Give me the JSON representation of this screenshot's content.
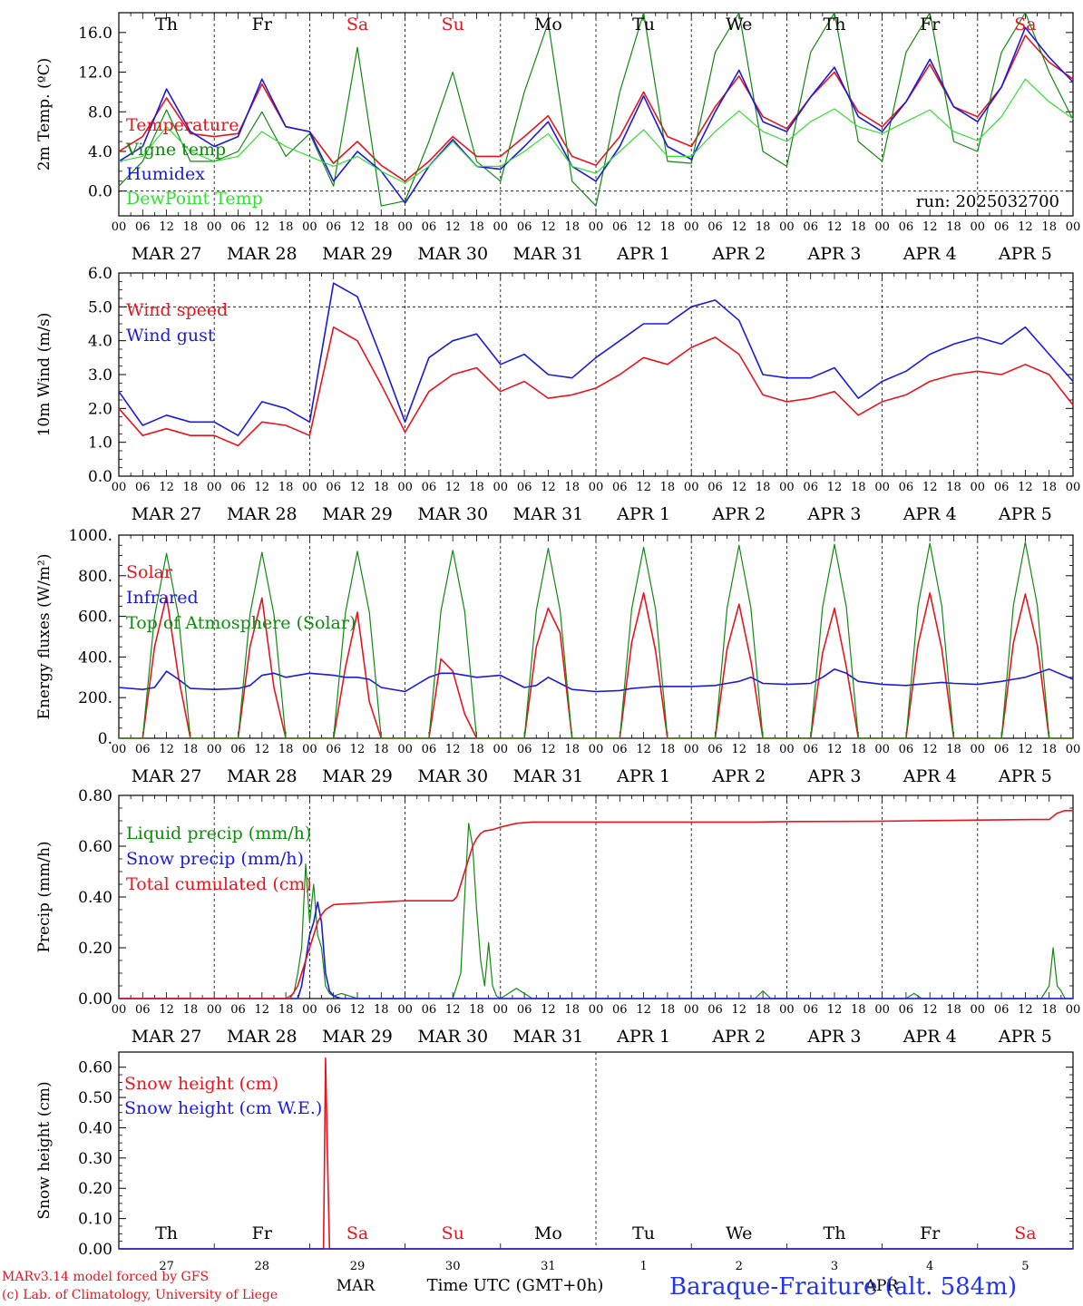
{
  "run_label": "run: 2025032700",
  "footer": {
    "model": "MARv3.14 model forced by GFS",
    "lab": "(c) Lab. of Climatology, University of Liege",
    "station": "Baraque-Fraiture (alt. 584m)",
    "xlabel": "Time UTC (GMT+0h)",
    "month_a": "MAR",
    "month_b": "APR"
  },
  "weekdays": [
    {
      "label": "Th",
      "weekend": false
    },
    {
      "label": "Fr",
      "weekend": false
    },
    {
      "label": "Sa",
      "weekend": true
    },
    {
      "label": "Su",
      "weekend": true
    },
    {
      "label": "Mo",
      "weekend": false
    },
    {
      "label": "Tu",
      "weekend": false
    },
    {
      "label": "We",
      "weekend": false
    },
    {
      "label": "Th",
      "weekend": false
    },
    {
      "label": "Fr",
      "weekend": false
    },
    {
      "label": "Sa",
      "weekend": true
    }
  ],
  "day_labels": [
    "MAR 27",
    "MAR 28",
    "MAR 29",
    "MAR 30",
    "MAR 31",
    "APR  1",
    "APR  2",
    "APR  3",
    "APR  4",
    "APR  5"
  ],
  "day_numbers": [
    "27",
    "28",
    "29",
    "30",
    "31",
    "1",
    "2",
    "3",
    "4",
    "5"
  ],
  "hour_ticks": [
    "00",
    "06",
    "12",
    "18"
  ],
  "colors": {
    "red": "#e8141e",
    "green": "#118811",
    "blue": "#1a1adc",
    "lightgreen": "#33dd33",
    "weekend": "#e8141e",
    "station": "#2233ee"
  },
  "chart_data": [
    {
      "type": "line",
      "ylabel": "2m Temp. (ºC)",
      "ylim": [
        -2.5,
        18
      ],
      "yticks": [
        "0.0",
        "4.0",
        "8.0",
        "12.0",
        "16.0"
      ],
      "ytick_values": [
        0,
        4,
        8,
        12,
        16
      ],
      "ref_line": 0,
      "x_hours": [
        0,
        6,
        12,
        18,
        24,
        30,
        36,
        42,
        48,
        54,
        60,
        66,
        72,
        78,
        84,
        90,
        96,
        102,
        108,
        114,
        120,
        126,
        132,
        138,
        144,
        150,
        156,
        162,
        168,
        174,
        180,
        186,
        192,
        198,
        204,
        210,
        216,
        222,
        228,
        234,
        240
      ],
      "series": [
        {
          "name": "Temperature",
          "color": "red",
          "values": [
            4.0,
            5.5,
            9.4,
            5.8,
            5.5,
            5.8,
            10.8,
            6.5,
            6.0,
            2.8,
            5.0,
            2.6,
            1.0,
            3.0,
            5.5,
            3.5,
            3.5,
            5.5,
            7.6,
            3.5,
            2.6,
            5.5,
            10.0,
            5.5,
            4.5,
            8.5,
            11.6,
            7.5,
            6.3,
            9.5,
            12.0,
            8.0,
            6.5,
            9.0,
            12.8,
            8.5,
            7.5,
            10.5,
            15.7,
            13.0,
            11.3
          ]
        },
        {
          "name": "Vigne temp",
          "color": "green",
          "values": [
            0.5,
            3.0,
            8.2,
            3.0,
            3.0,
            4.0,
            8.0,
            3.5,
            5.8,
            0.5,
            14.5,
            -1.5,
            -1.0,
            5.0,
            12.0,
            3.0,
            1.0,
            10.0,
            17.0,
            1.0,
            -1.5,
            10.0,
            18.0,
            3.0,
            2.8,
            14.0,
            18.0,
            4.0,
            2.5,
            14.0,
            18.0,
            5.0,
            3.0,
            14.0,
            18.0,
            5.0,
            4.0,
            14.0,
            18.0,
            12.0,
            7.2
          ]
        },
        {
          "name": "Humidex",
          "color": "blue",
          "values": [
            3.0,
            4.5,
            10.3,
            6.0,
            4.5,
            5.5,
            11.3,
            6.5,
            6.0,
            1.0,
            4.0,
            2.0,
            -1.2,
            2.5,
            5.2,
            2.5,
            2.2,
            4.5,
            7.0,
            2.5,
            1.0,
            4.5,
            9.6,
            4.5,
            3.2,
            8.0,
            12.2,
            7.0,
            6.0,
            9.5,
            12.5,
            7.5,
            6.0,
            9.0,
            13.3,
            8.5,
            7.0,
            10.5,
            16.5,
            13.5,
            11.0
          ]
        },
        {
          "name": "DewPoint Temp",
          "color": "lightgreen",
          "values": [
            3.0,
            3.5,
            6.5,
            4.0,
            3.0,
            3.5,
            6.0,
            4.5,
            3.5,
            2.5,
            3.5,
            2.0,
            0.8,
            2.5,
            5.0,
            2.5,
            2.5,
            4.0,
            5.8,
            2.5,
            1.8,
            4.0,
            6.2,
            3.5,
            3.5,
            6.0,
            8.1,
            6.0,
            5.0,
            7.0,
            8.3,
            6.5,
            5.8,
            7.0,
            8.2,
            6.0,
            5.1,
            7.5,
            11.3,
            9.0,
            7.3
          ]
        }
      ]
    },
    {
      "type": "line",
      "ylabel": "10m Wind (m/s)",
      "ylim": [
        0,
        6
      ],
      "yticks": [
        "0.0",
        "1.0",
        "2.0",
        "3.0",
        "4.0",
        "5.0",
        "6.0"
      ],
      "ytick_values": [
        0,
        1,
        2,
        3,
        4,
        5,
        6
      ],
      "ref_line": 5,
      "x_hours": [
        0,
        6,
        12,
        18,
        24,
        30,
        36,
        42,
        48,
        54,
        60,
        66,
        72,
        78,
        84,
        90,
        96,
        102,
        108,
        114,
        120,
        126,
        132,
        138,
        144,
        150,
        156,
        162,
        168,
        174,
        180,
        186,
        192,
        198,
        204,
        210,
        216,
        222,
        228,
        234,
        240
      ],
      "series": [
        {
          "name": "Wind speed",
          "color": "red",
          "values": [
            2.0,
            1.2,
            1.4,
            1.2,
            1.2,
            0.9,
            1.6,
            1.5,
            1.2,
            4.4,
            4.0,
            2.7,
            1.3,
            2.5,
            3.0,
            3.2,
            2.5,
            2.8,
            2.3,
            2.4,
            2.6,
            3.0,
            3.5,
            3.3,
            3.8,
            4.1,
            3.6,
            2.4,
            2.2,
            2.3,
            2.5,
            1.8,
            2.2,
            2.4,
            2.8,
            3.0,
            3.1,
            3.0,
            3.3,
            3.0,
            2.1
          ]
        },
        {
          "name": "Wind gust",
          "color": "blue",
          "values": [
            2.5,
            1.5,
            1.8,
            1.6,
            1.6,
            1.2,
            2.2,
            2.0,
            1.6,
            5.7,
            5.3,
            3.5,
            1.6,
            3.5,
            4.0,
            4.2,
            3.3,
            3.6,
            3.0,
            2.9,
            3.5,
            4.0,
            4.5,
            4.5,
            5.0,
            5.2,
            4.6,
            3.0,
            2.9,
            2.9,
            3.2,
            2.3,
            2.8,
            3.1,
            3.6,
            3.9,
            4.1,
            3.9,
            4.4,
            3.6,
            2.8
          ]
        }
      ]
    },
    {
      "type": "line",
      "ylabel": "Energy fluxes (W/m²)",
      "ylim": [
        0,
        1000
      ],
      "yticks": [
        "0.",
        "200.",
        "400.",
        "600.",
        "800.",
        "1000."
      ],
      "ytick_values": [
        0,
        200,
        400,
        600,
        800,
        1000
      ],
      "x_hours": [
        0,
        6,
        9,
        12,
        15,
        18,
        24,
        30,
        33,
        36,
        39,
        42,
        48,
        54,
        57,
        60,
        63,
        66,
        72,
        78,
        81,
        84,
        87,
        90,
        96,
        102,
        105,
        108,
        111,
        114,
        120,
        126,
        129,
        132,
        135,
        138,
        144,
        150,
        153,
        156,
        159,
        162,
        168,
        174,
        177,
        180,
        183,
        186,
        192,
        198,
        201,
        204,
        207,
        210,
        216,
        222,
        225,
        228,
        231,
        234,
        240
      ],
      "series": [
        {
          "name": "Solar",
          "color": "red",
          "values": [
            0,
            0,
            450,
            700,
            300,
            0,
            0,
            0,
            450,
            690,
            250,
            0,
            0,
            0,
            350,
            620,
            180,
            0,
            0,
            0,
            390,
            330,
            120,
            0,
            0,
            0,
            450,
            640,
            520,
            0,
            0,
            0,
            470,
            715,
            430,
            0,
            0,
            0,
            440,
            660,
            380,
            0,
            0,
            0,
            420,
            640,
            350,
            0,
            0,
            0,
            460,
            715,
            440,
            0,
            0,
            0,
            470,
            710,
            460,
            0,
            0
          ]
        },
        {
          "name": "Infrared",
          "color": "blue",
          "values": [
            250,
            240,
            250,
            330,
            290,
            245,
            240,
            245,
            260,
            310,
            320,
            300,
            320,
            310,
            300,
            300,
            290,
            250,
            230,
            300,
            320,
            320,
            310,
            300,
            310,
            250,
            260,
            300,
            270,
            240,
            230,
            235,
            245,
            250,
            255,
            255,
            255,
            260,
            270,
            280,
            300,
            270,
            265,
            270,
            300,
            340,
            320,
            280,
            265,
            260,
            265,
            270,
            275,
            270,
            265,
            280,
            290,
            300,
            320,
            340,
            290
          ]
        },
        {
          "name": "Top of Atmosphere (Solar)",
          "color": "green",
          "values": [
            0,
            0,
            600,
            910,
            600,
            0,
            0,
            0,
            610,
            915,
            610,
            0,
            0,
            0,
            620,
            920,
            620,
            0,
            0,
            0,
            625,
            925,
            625,
            0,
            0,
            0,
            630,
            935,
            630,
            0,
            0,
            0,
            635,
            940,
            635,
            0,
            0,
            0,
            640,
            950,
            640,
            0,
            0,
            0,
            645,
            955,
            645,
            0,
            0,
            0,
            650,
            960,
            650,
            0,
            0,
            0,
            655,
            965,
            655,
            0,
            0
          ]
        }
      ]
    },
    {
      "type": "line",
      "ylabel": "Precip (mm/h)",
      "ylim": [
        0,
        0.8
      ],
      "yticks": [
        "0.00",
        "0.20",
        "0.40",
        "0.60",
        "0.80"
      ],
      "ytick_values": [
        0,
        0.2,
        0.4,
        0.6,
        0.8
      ],
      "series": [
        {
          "name": "Liquid precip (mm/h)",
          "color": "green",
          "x": [
            0,
            36,
            40,
            42,
            44,
            45,
            46,
            47,
            48,
            49,
            50,
            51,
            52,
            53,
            54,
            56,
            58,
            60,
            72,
            84,
            86,
            87,
            88,
            89,
            90,
            91,
            92,
            93,
            94,
            95,
            96,
            98,
            100,
            102,
            104,
            120,
            160,
            162,
            164,
            192,
            198,
            200,
            202,
            232,
            234,
            235,
            236,
            237,
            238,
            240
          ],
          "y": [
            0,
            0,
            0,
            0,
            0.02,
            0.1,
            0.2,
            0.53,
            0.3,
            0.45,
            0.25,
            0.2,
            0.05,
            0.02,
            0.01,
            0.02,
            0.01,
            0,
            0,
            0,
            0.1,
            0.4,
            0.69,
            0.6,
            0.35,
            0.15,
            0.05,
            0.22,
            0.05,
            0.01,
            0,
            0.02,
            0.04,
            0.02,
            0,
            0,
            0,
            0.03,
            0,
            0,
            0,
            0.02,
            0,
            0,
            0.05,
            0.2,
            0.05,
            0.03,
            0,
            0
          ]
        },
        {
          "name": "Snow precip (mm/h)",
          "color": "blue",
          "x": [
            0,
            45,
            46,
            47,
            48,
            49,
            50,
            51,
            52,
            53,
            54,
            55,
            56,
            240
          ],
          "y": [
            0,
            0,
            0.05,
            0.15,
            0.25,
            0.3,
            0.38,
            0.3,
            0.1,
            0.03,
            0.01,
            0.005,
            0,
            0
          ]
        },
        {
          "name": "Total cumulated (cm)",
          "color": "red",
          "x": [
            0,
            43,
            45,
            46,
            47,
            48,
            49,
            50,
            51,
            52,
            53,
            54,
            56,
            60,
            66,
            72,
            84,
            85,
            86,
            87,
            88,
            89,
            90,
            91,
            92,
            94,
            96,
            100,
            104,
            120,
            160,
            170,
            190,
            200,
            230,
            234,
            236,
            238,
            240
          ],
          "y": [
            0,
            0,
            0.05,
            0.1,
            0.15,
            0.2,
            0.25,
            0.3,
            0.33,
            0.35,
            0.36,
            0.37,
            0.372,
            0.375,
            0.38,
            0.385,
            0.385,
            0.4,
            0.45,
            0.5,
            0.55,
            0.6,
            0.63,
            0.65,
            0.66,
            0.665,
            0.675,
            0.69,
            0.695,
            0.695,
            0.695,
            0.697,
            0.698,
            0.7,
            0.705,
            0.705,
            0.73,
            0.74,
            0.74
          ]
        }
      ]
    },
    {
      "type": "line",
      "ylabel": "Snow height (cm)",
      "ylim": [
        0,
        0.65
      ],
      "yticks": [
        "0.00",
        "0.10",
        "0.20",
        "0.30",
        "0.40",
        "0.50",
        "0.60"
      ],
      "ytick_values": [
        0,
        0.1,
        0.2,
        0.3,
        0.4,
        0.5,
        0.6
      ],
      "series": [
        {
          "name": "Snow height (cm)",
          "color": "red",
          "x": [
            0,
            51.5,
            52,
            52.5,
            53,
            240
          ],
          "y": [
            0,
            0,
            0.63,
            0.3,
            0,
            0
          ]
        },
        {
          "name": "Snow height (cm W.E.)",
          "color": "blue",
          "x": [
            0,
            240
          ],
          "y": [
            0,
            0
          ]
        }
      ]
    }
  ]
}
